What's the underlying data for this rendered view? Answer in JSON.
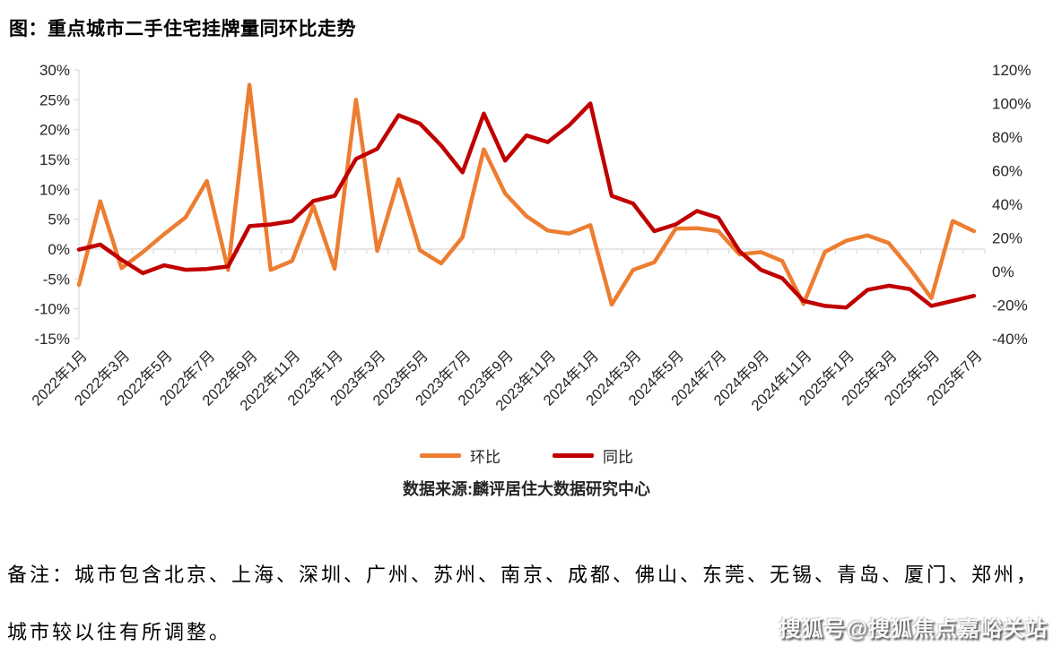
{
  "page": {
    "title": "图：重点城市二手住宅挂牌量同环比走势"
  },
  "chart_data": {
    "type": "line",
    "title": "图：重点城市二手住宅挂牌量同环比走势",
    "categories": [
      "2022年1月",
      "2022年2月",
      "2022年3月",
      "2022年4月",
      "2022年5月",
      "2022年6月",
      "2022年7月",
      "2022年8月",
      "2022年9月",
      "2022年10月",
      "2022年11月",
      "2022年12月",
      "2023年1月",
      "2023年2月",
      "2023年3月",
      "2023年4月",
      "2023年5月",
      "2023年6月",
      "2023年7月",
      "2023年8月",
      "2023年9月",
      "2023年10月",
      "2023年11月",
      "2023年12月",
      "2024年1月",
      "2024年2月",
      "2024年3月",
      "2024年4月",
      "2024年5月",
      "2024年6月",
      "2024年7月",
      "2024年8月",
      "2024年9月",
      "2024年10月",
      "2024年11月",
      "2024年12月",
      "2025年1月",
      "2025年2月",
      "2025年3月",
      "2025年4月",
      "2025年5月",
      "2025年6月",
      "2025年7月"
    ],
    "x_tick_label_every": 2,
    "series": [
      {
        "name": "环比",
        "axis": "left",
        "color": "#ED7D31",
        "values": [
          -6,
          8,
          -3.2,
          -0.5,
          2.5,
          5.3,
          11.4,
          -3.5,
          27.5,
          -3.5,
          -2,
          7.2,
          -3.3,
          25,
          -0.3,
          11.7,
          -0.2,
          -2.4,
          2,
          16.7,
          9.3,
          5.5,
          3.1,
          2.6,
          4,
          -9.3,
          -3.5,
          -2.2,
          3.4,
          3.5,
          3,
          -0.9,
          -0.5,
          -2,
          -9.2,
          -0.5,
          1.4,
          2.3,
          1,
          -3.3,
          -8.2,
          4.7,
          3
        ]
      },
      {
        "name": "同比",
        "axis": "right",
        "color": "#C00000",
        "values": [
          13,
          16,
          7,
          -1,
          3.7,
          1,
          1.5,
          3,
          27,
          28,
          30,
          42,
          45,
          67,
          73,
          93,
          88,
          75,
          59,
          94,
          66,
          81,
          77,
          87,
          100,
          45,
          40.5,
          24,
          28,
          36,
          32,
          12,
          1,
          -4,
          -17.5,
          -20.5,
          -21.5,
          -11,
          -8.5,
          -10.5,
          -20.5,
          -17.5,
          -14.5
        ]
      }
    ],
    "left_axis": {
      "min": -15,
      "max": 30,
      "step": 5,
      "tick_labels": [
        "30%",
        "25%",
        "20%",
        "15%",
        "10%",
        "5%",
        "0%",
        "-5%",
        "-10%",
        "-15%"
      ]
    },
    "right_axis": {
      "min": -40,
      "max": 120,
      "step": 20,
      "tick_labels": [
        "120%",
        "100%",
        "80%",
        "60%",
        "40%",
        "20%",
        "0%",
        "-20%",
        "-40%"
      ]
    },
    "grid": "zero-line-only",
    "legend_position": "bottom-center",
    "axis_color": "#D9D9D9",
    "label_color": "#262626"
  },
  "legend": {
    "items": [
      {
        "label": "环比",
        "color": "#ED7D31"
      },
      {
        "label": "同比",
        "color": "#C00000"
      }
    ]
  },
  "source": {
    "text": "数据来源:麟评居住大数据研究中心"
  },
  "note": {
    "line1": "备注：城市包含北京、上海、深圳、广州、苏州、南京、成都、佛山、东莞、无锡、青岛、厦门、郑州，",
    "line2": "城市较以往有所调整。"
  },
  "watermark": {
    "text": "搜狐号@搜狐焦点嘉峪关站"
  }
}
